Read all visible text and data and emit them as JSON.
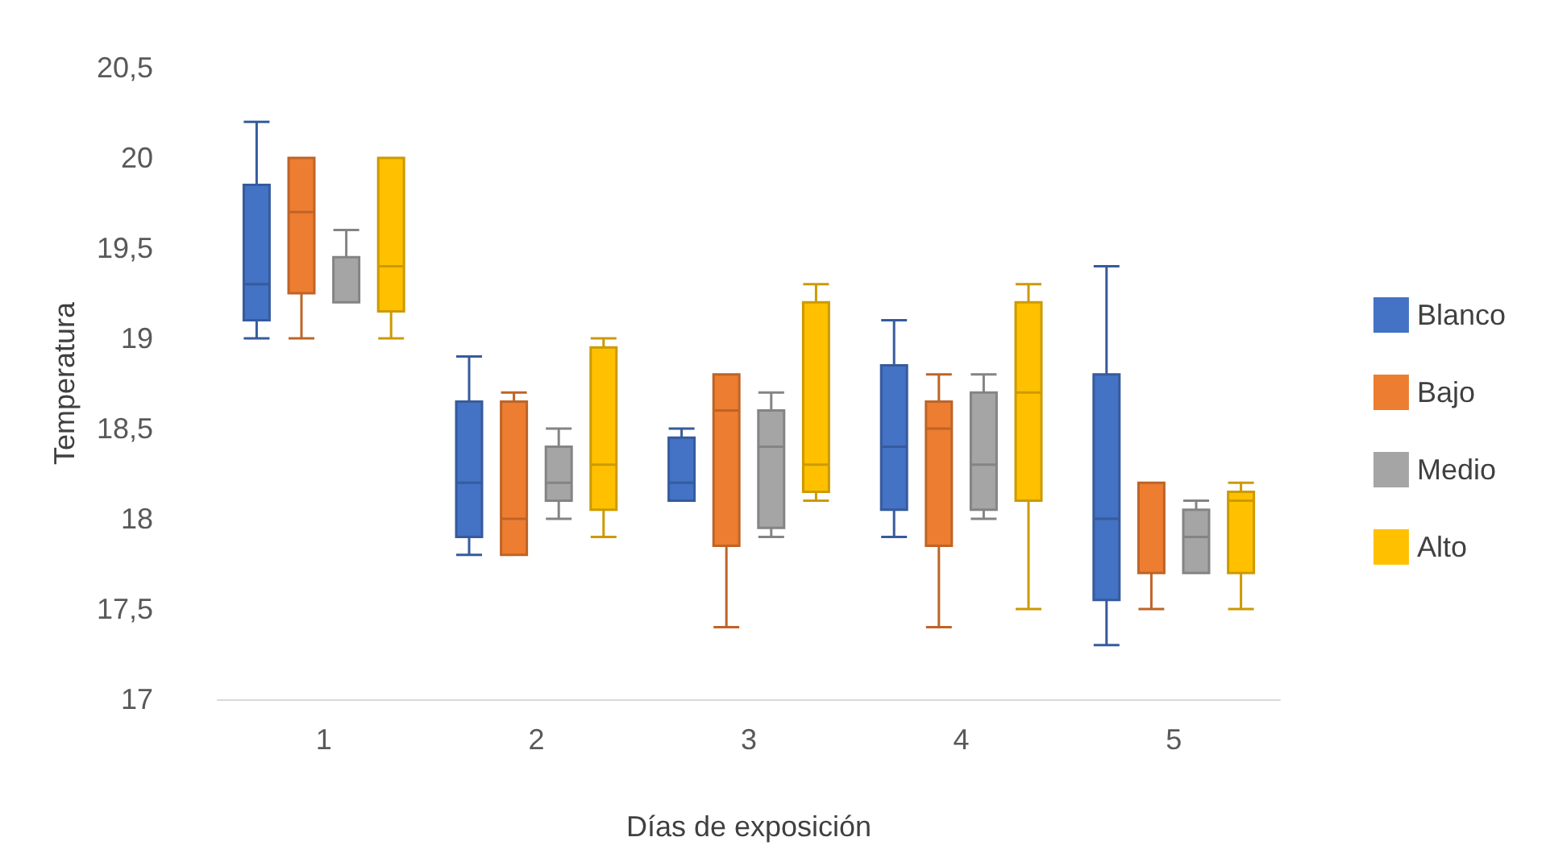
{
  "chart_data": {
    "type": "box",
    "xlabel": "Días de exposición",
    "ylabel": "Temperatura",
    "categories": [
      "1",
      "2",
      "3",
      "4",
      "5"
    ],
    "ylim": [
      17,
      20.5
    ],
    "yticks": [
      17,
      {
        "value": 17.5,
        "label": "17,5"
      },
      18,
      {
        "value": 18.5,
        "label": "18,5"
      },
      19,
      {
        "value": 19.5,
        "label": "19,5"
      },
      20,
      {
        "value": 20.5,
        "label": "20,5"
      }
    ],
    "legend": "right",
    "series": [
      {
        "name": "Blanco",
        "color": "#4472c4",
        "boxes": [
          {
            "low": 19.0,
            "q1": 19.1,
            "median": 19.3,
            "q3": 19.85,
            "high": 20.2
          },
          {
            "low": 17.8,
            "q1": 17.9,
            "median": 18.2,
            "q3": 18.65,
            "high": 18.9
          },
          {
            "low": 18.1,
            "q1": 18.1,
            "median": 18.2,
            "q3": 18.45,
            "high": 18.5
          },
          {
            "low": 17.9,
            "q1": 18.05,
            "median": 18.4,
            "q3": 18.85,
            "high": 19.1
          },
          {
            "low": 17.3,
            "q1": 17.55,
            "median": 18.0,
            "q3": 18.8,
            "high": 19.4
          }
        ]
      },
      {
        "name": "Bajo",
        "color": "#ed7d31",
        "boxes": [
          {
            "low": 19.0,
            "q1": 19.25,
            "median": 19.7,
            "q3": 20.0,
            "high": 20.0
          },
          {
            "low": 17.8,
            "q1": 17.8,
            "median": 18.0,
            "q3": 18.65,
            "high": 18.7
          },
          {
            "low": 17.4,
            "q1": 17.85,
            "median": 18.6,
            "q3": 18.8,
            "high": 18.8
          },
          {
            "low": 17.4,
            "q1": 17.85,
            "median": 18.5,
            "q3": 18.65,
            "high": 18.8
          },
          {
            "low": 17.5,
            "q1": 17.7,
            "median": 17.7,
            "q3": 18.2,
            "high": 18.2
          }
        ]
      },
      {
        "name": "Medio",
        "color": "#a5a5a5",
        "boxes": [
          {
            "low": 19.2,
            "q1": 19.2,
            "median": 19.2,
            "q3": 19.45,
            "high": 19.6
          },
          {
            "low": 18.0,
            "q1": 18.1,
            "median": 18.2,
            "q3": 18.4,
            "high": 18.5
          },
          {
            "low": 17.9,
            "q1": 17.95,
            "median": 18.4,
            "q3": 18.6,
            "high": 18.7
          },
          {
            "low": 18.0,
            "q1": 18.05,
            "median": 18.3,
            "q3": 18.7,
            "high": 18.8
          },
          {
            "low": 17.7,
            "q1": 17.7,
            "median": 17.9,
            "q3": 18.05,
            "high": 18.1
          }
        ]
      },
      {
        "name": "Alto",
        "color": "#ffc000",
        "boxes": [
          {
            "low": 19.0,
            "q1": 19.15,
            "median": 19.4,
            "q3": 20.0,
            "high": 20.0
          },
          {
            "low": 17.9,
            "q1": 18.05,
            "median": 18.3,
            "q3": 18.95,
            "high": 19.0
          },
          {
            "low": 18.1,
            "q1": 18.15,
            "median": 18.3,
            "q3": 19.2,
            "high": 19.3
          },
          {
            "low": 17.5,
            "q1": 18.1,
            "median": 18.7,
            "q3": 19.2,
            "high": 19.3
          },
          {
            "low": 17.5,
            "q1": 17.7,
            "median": 18.1,
            "q3": 18.15,
            "high": 18.2
          }
        ]
      }
    ]
  }
}
